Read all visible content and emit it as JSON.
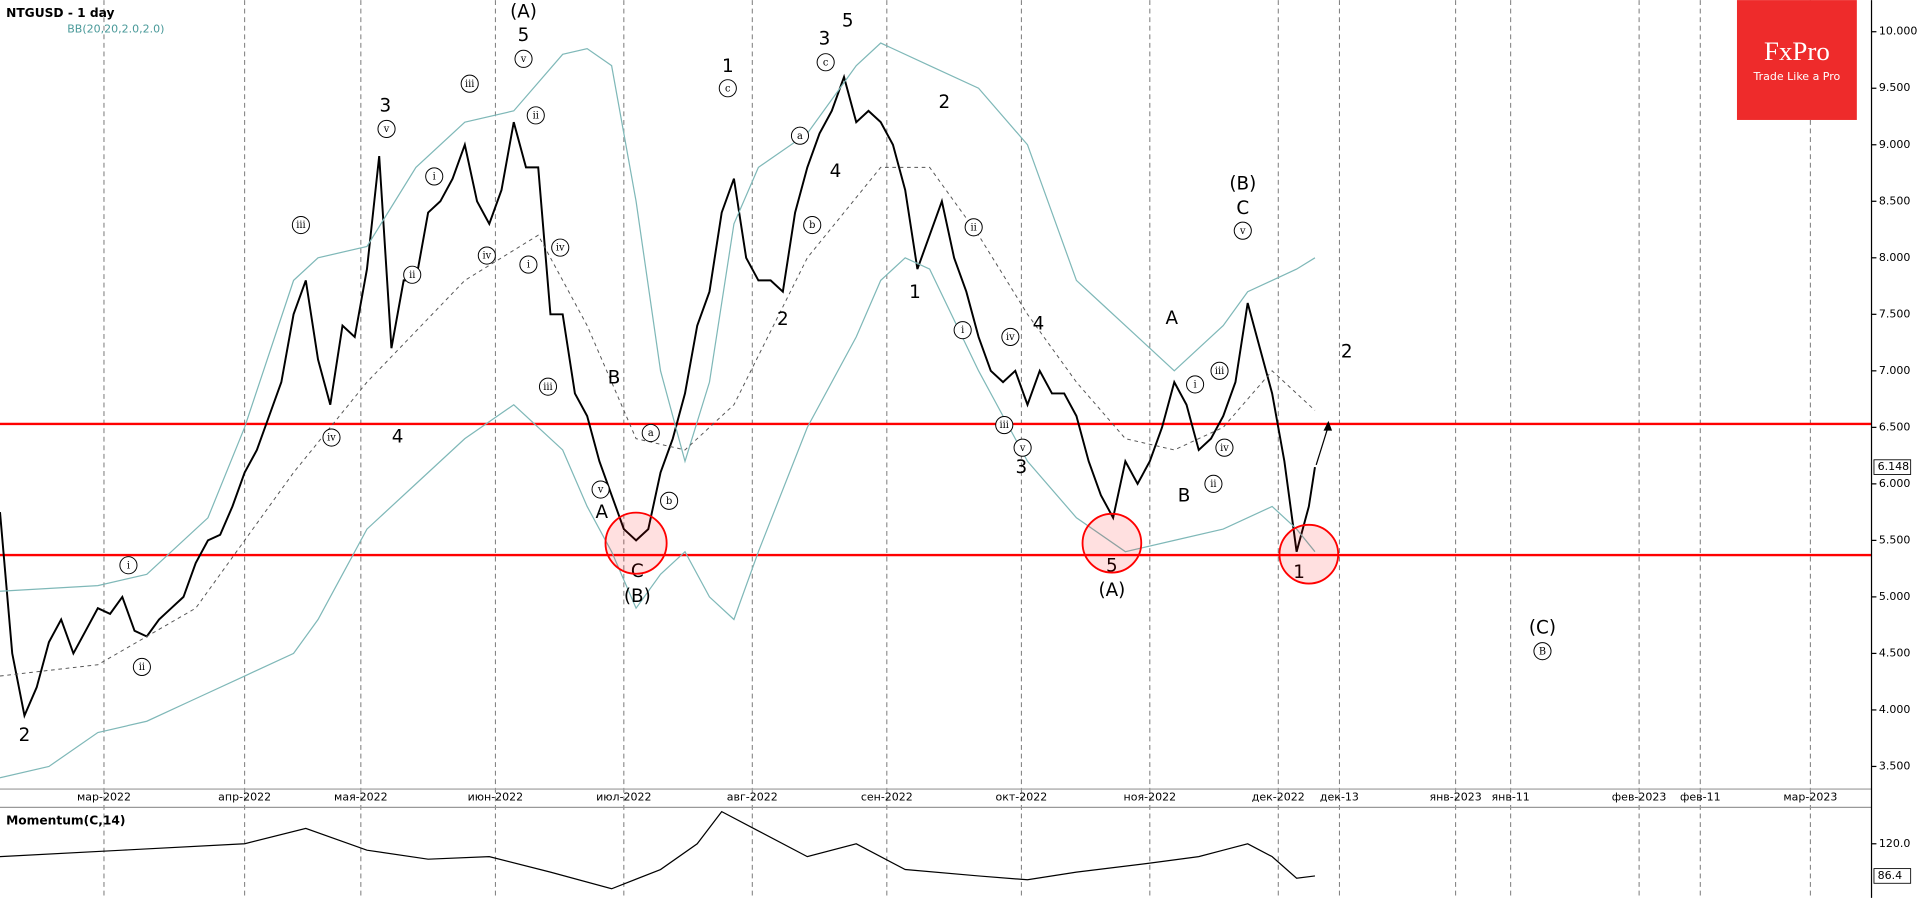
{
  "logo": {
    "brand": "FxPro",
    "tagline": "Trade Like a Pro"
  },
  "chart_data": [
    {
      "type": "line",
      "title": "NTGUSD - 1 day",
      "subtitle": "BB(20,20,2.0,2.0)",
      "xlim": [
        0,
        306
      ],
      "ylim": [
        3.3,
        10.28
      ],
      "xticks": [
        {
          "value": 17,
          "label": "мар-2022"
        },
        {
          "value": 40,
          "label": "апр-2022"
        },
        {
          "value": 59,
          "label": "мая-2022"
        },
        {
          "value": 81,
          "label": "июн-2022"
        },
        {
          "value": 102,
          "label": "июл-2022"
        },
        {
          "value": 123,
          "label": "авг-2022"
        },
        {
          "value": 145,
          "label": "сен-2022"
        },
        {
          "value": 167,
          "label": "окт-2022"
        },
        {
          "value": 188,
          "label": "ноя-2022"
        },
        {
          "value": 209,
          "label": "дек-2022"
        },
        {
          "value": 219,
          "label": "дек-13"
        },
        {
          "value": 238,
          "label": "янв-2023"
        },
        {
          "value": 247,
          "label": "янв-11"
        },
        {
          "value": 268,
          "label": "фев-2023"
        },
        {
          "value": 278,
          "label": "фев-11"
        },
        {
          "value": 296,
          "label": "мар-2023"
        }
      ],
      "yticks": [
        {
          "value": 3.5,
          "label": "3.500"
        },
        {
          "value": 4,
          "label": "4.000"
        },
        {
          "value": 4.5,
          "label": "4.500"
        },
        {
          "value": 5,
          "label": "5.000"
        },
        {
          "value": 5.5,
          "label": "5.500"
        },
        {
          "value": 6,
          "label": "6.000"
        },
        {
          "value": 6.5,
          "label": "6.500"
        },
        {
          "value": 7,
          "label": "7.000"
        },
        {
          "value": 7.5,
          "label": "7.500"
        },
        {
          "value": 8,
          "label": "8.000"
        },
        {
          "value": 8.5,
          "label": "8.500"
        },
        {
          "value": 9,
          "label": "9.000"
        },
        {
          "value": 9.5,
          "label": "9.500"
        },
        {
          "value": 10,
          "label": "10.000"
        }
      ],
      "levels": [
        6.53,
        5.37
      ],
      "level_color": "#ff0000",
      "series": [
        {
          "color": "#000000",
          "width": 1.6,
          "dashed": false,
          "last_tag": true,
          "x": [
            0,
            2,
            4,
            6,
            8,
            10,
            12,
            14,
            16,
            18,
            20,
            22,
            24,
            26,
            28,
            30,
            32,
            34,
            36,
            38,
            40,
            42,
            44,
            46,
            48,
            50,
            52,
            54,
            56,
            58,
            60,
            62,
            64,
            66,
            68,
            70,
            72,
            74,
            76,
            78,
            80,
            82,
            84,
            86,
            88,
            90,
            92,
            94,
            96,
            98,
            100,
            102,
            104,
            106,
            108,
            110,
            112,
            114,
            116,
            118,
            120,
            122,
            124,
            126,
            128,
            130,
            132,
            134,
            136,
            138,
            140,
            142,
            144,
            146,
            148,
            150,
            152,
            154,
            156,
            158,
            160,
            162,
            164,
            166,
            168,
            170,
            172,
            174,
            176,
            178,
            180,
            182,
            184,
            186,
            188,
            190,
            192,
            194,
            196,
            198,
            200,
            202,
            204,
            206,
            208,
            210,
            211,
            212,
            213,
            214,
            215
          ],
          "values": [
            5.75,
            4.5,
            3.95,
            4.2,
            4.6,
            4.8,
            4.5,
            4.7,
            4.9,
            4.85,
            5.0,
            4.7,
            4.65,
            4.8,
            4.9,
            5.0,
            5.3,
            5.5,
            5.55,
            5.8,
            6.1,
            6.3,
            6.6,
            6.9,
            7.5,
            7.8,
            7.1,
            6.7,
            7.4,
            7.3,
            7.9,
            8.9,
            7.2,
            7.8,
            7.8,
            8.4,
            8.5,
            8.7,
            9.0,
            8.5,
            8.3,
            8.6,
            9.2,
            8.8,
            8.8,
            7.5,
            7.5,
            6.8,
            6.6,
            6.2,
            5.9,
            5.6,
            5.5,
            5.6,
            6.1,
            6.4,
            6.8,
            7.4,
            7.7,
            8.4,
            8.7,
            8.0,
            7.8,
            7.8,
            7.7,
            8.4,
            8.8,
            9.1,
            9.3,
            9.6,
            9.2,
            9.3,
            9.2,
            9.0,
            8.6,
            7.9,
            8.2,
            8.5,
            8.0,
            7.7,
            7.3,
            7.0,
            6.9,
            7.0,
            6.7,
            7.0,
            6.8,
            6.8,
            6.6,
            6.2,
            5.9,
            5.7,
            6.2,
            6.0,
            6.2,
            6.5,
            6.9,
            6.7,
            6.3,
            6.4,
            6.6,
            6.9,
            7.6,
            7.2,
            6.8,
            6.2,
            5.8,
            5.4,
            5.6,
            5.8,
            6.148
          ]
        },
        {
          "color": "#7fb8b8",
          "width": 1,
          "dashed": false,
          "x": [
            0,
            16,
            24,
            34,
            40,
            48,
            52,
            60,
            68,
            76,
            84,
            92,
            96,
            100,
            104,
            108,
            112,
            116,
            120,
            124,
            132,
            140,
            144,
            152,
            160,
            168,
            172,
            176,
            180,
            188,
            192,
            196,
            200,
            204,
            208,
            212,
            215
          ],
          "values": [
            5.05,
            5.1,
            5.2,
            5.7,
            6.5,
            7.8,
            8.0,
            8.1,
            8.8,
            9.2,
            9.3,
            9.8,
            9.85,
            9.7,
            8.5,
            7.0,
            6.2,
            6.9,
            8.3,
            8.8,
            9.1,
            9.7,
            9.9,
            9.7,
            9.5,
            9.0,
            8.4,
            7.8,
            7.6,
            7.2,
            7.0,
            7.2,
            7.4,
            7.7,
            7.8,
            7.9,
            8.0
          ]
        },
        {
          "color": "#555555",
          "width": 0.8,
          "dashed": true,
          "x": [
            0,
            16,
            32,
            48,
            60,
            76,
            88,
            96,
            104,
            112,
            120,
            132,
            144,
            152,
            160,
            168,
            176,
            184,
            192,
            200,
            208,
            212,
            215
          ],
          "values": [
            4.3,
            4.4,
            4.9,
            6.1,
            6.9,
            7.8,
            8.2,
            7.4,
            6.4,
            6.3,
            6.7,
            8.0,
            8.8,
            8.8,
            8.2,
            7.5,
            6.9,
            6.4,
            6.3,
            6.5,
            7.0,
            6.8,
            6.65
          ]
        },
        {
          "color": "#7fb8b8",
          "width": 1,
          "dashed": false,
          "x": [
            0,
            8,
            16,
            24,
            32,
            40,
            48,
            52,
            56,
            60,
            68,
            76,
            84,
            92,
            96,
            100,
            104,
            108,
            112,
            116,
            120,
            124,
            132,
            140,
            144,
            148,
            152,
            160,
            168,
            176,
            184,
            192,
            200,
            208,
            212,
            215
          ],
          "values": [
            3.4,
            3.5,
            3.8,
            3.9,
            4.1,
            4.3,
            4.5,
            4.8,
            5.2,
            5.6,
            6.0,
            6.4,
            6.7,
            6.3,
            5.8,
            5.4,
            4.9,
            5.2,
            5.4,
            5.0,
            4.8,
            5.4,
            6.5,
            7.3,
            7.8,
            8.0,
            7.9,
            7.0,
            6.2,
            5.7,
            5.4,
            5.5,
            5.6,
            5.8,
            5.6,
            5.4
          ]
        }
      ],
      "annotations": [
        {
          "text": "2",
          "x": 4,
          "y": 3.77
        },
        {
          "text": "3",
          "x": 63,
          "y": 9.34
        },
        {
          "text": "4",
          "x": 65,
          "y": 6.41
        },
        {
          "text": "(A)",
          "x": 85.6,
          "y": 10.17
        },
        {
          "text": "5",
          "x": 85.6,
          "y": 9.96
        },
        {
          "text": "A",
          "x": 98.4,
          "y": 5.74
        },
        {
          "text": "B",
          "x": 100.4,
          "y": 6.93
        },
        {
          "text": "C",
          "x": 104.2,
          "y": 5.22
        },
        {
          "text": "(B)",
          "x": 104.2,
          "y": 5.0
        },
        {
          "text": "1",
          "x": 119,
          "y": 9.69
        },
        {
          "text": "2",
          "x": 128,
          "y": 7.45
        },
        {
          "text": "3",
          "x": 134.8,
          "y": 9.93
        },
        {
          "text": "4",
          "x": 136.6,
          "y": 8.76
        },
        {
          "text": "5",
          "x": 138.6,
          "y": 10.09
        },
        {
          "text": "2",
          "x": 154.4,
          "y": 9.37
        },
        {
          "text": "1",
          "x": 149.6,
          "y": 7.69
        },
        {
          "text": "3",
          "x": 167,
          "y": 6.14
        },
        {
          "text": "4",
          "x": 169.8,
          "y": 7.41
        },
        {
          "text": "5",
          "x": 181.8,
          "y": 5.27
        },
        {
          "text": "(A)",
          "x": 181.8,
          "y": 5.05
        },
        {
          "text": "A",
          "x": 191.6,
          "y": 7.46
        },
        {
          "text": "B",
          "x": 193.6,
          "y": 5.89
        },
        {
          "text": "(B)",
          "x": 203.2,
          "y": 8.65
        },
        {
          "text": "C",
          "x": 203.2,
          "y": 8.43
        },
        {
          "text": "1",
          "x": 212.4,
          "y": 5.21
        },
        {
          "text": "2",
          "x": 220.2,
          "y": 7.16
        },
        {
          "text": "(C)",
          "x": 252.2,
          "y": 4.72
        },
        {
          "text": "i",
          "x": 21,
          "y": 5.28,
          "circled": true
        },
        {
          "text": "ii",
          "x": 23.2,
          "y": 4.38,
          "circled": true
        },
        {
          "text": "iii",
          "x": 49.2,
          "y": 8.29,
          "circled": true
        },
        {
          "text": "iv",
          "x": 54.2,
          "y": 6.41,
          "circled": true
        },
        {
          "text": "v",
          "x": 63.2,
          "y": 9.14,
          "circled": true
        },
        {
          "text": "i",
          "x": 71,
          "y": 8.72,
          "circled": true
        },
        {
          "text": "ii",
          "x": 67.4,
          "y": 7.85,
          "circled": true
        },
        {
          "text": "iii",
          "x": 76.8,
          "y": 9.54,
          "circled": true
        },
        {
          "text": "iv",
          "x": 79.6,
          "y": 8.02,
          "circled": true
        },
        {
          "text": "v",
          "x": 85.6,
          "y": 9.76,
          "circled": true
        },
        {
          "text": "ii",
          "x": 87.6,
          "y": 9.26,
          "circled": true
        },
        {
          "text": "i",
          "x": 86.4,
          "y": 7.94,
          "circled": true
        },
        {
          "text": "iii",
          "x": 89.6,
          "y": 6.86,
          "circled": true
        },
        {
          "text": "iv",
          "x": 91.6,
          "y": 8.09,
          "circled": true
        },
        {
          "text": "v",
          "x": 98.2,
          "y": 5.95,
          "circled": true
        },
        {
          "text": "a",
          "x": 106.4,
          "y": 6.45,
          "circled": true
        },
        {
          "text": "b",
          "x": 109.4,
          "y": 5.85,
          "circled": true
        },
        {
          "text": "c",
          "x": 119,
          "y": 9.5,
          "circled": true
        },
        {
          "text": "a",
          "x": 130.8,
          "y": 9.08,
          "circled": true
        },
        {
          "text": "b",
          "x": 132.8,
          "y": 8.29,
          "circled": true
        },
        {
          "text": "c",
          "x": 135,
          "y": 9.73,
          "circled": true
        },
        {
          "text": "ii",
          "x": 159.2,
          "y": 8.27,
          "circled": true
        },
        {
          "text": "i",
          "x": 157.4,
          "y": 7.36,
          "circled": true
        },
        {
          "text": "iv",
          "x": 165.2,
          "y": 7.3,
          "circled": true
        },
        {
          "text": "iii",
          "x": 164.2,
          "y": 6.52,
          "circled": true
        },
        {
          "text": "v",
          "x": 167.2,
          "y": 6.32,
          "circled": true
        },
        {
          "text": "v",
          "x": 203.2,
          "y": 8.24,
          "circled": true
        },
        {
          "text": "i",
          "x": 195.4,
          "y": 6.88,
          "circled": true
        },
        {
          "text": "iii",
          "x": 199.4,
          "y": 7.0,
          "circled": true
        },
        {
          "text": "iv",
          "x": 200.2,
          "y": 6.32,
          "circled": true
        },
        {
          "text": "ii",
          "x": 198.4,
          "y": 6.0,
          "circled": true
        },
        {
          "text": "B",
          "x": 252.2,
          "y": 4.52,
          "circled": true
        }
      ]
    },
    {
      "type": "line",
      "title": "Momentum(C,14)",
      "xlim": [
        0,
        306
      ],
      "ylim": [
        66,
        158
      ],
      "yticks": [
        {
          "value": 120,
          "label": "120.0"
        }
      ],
      "series": [
        {
          "color": "#000000",
          "width": 1,
          "dashed": false,
          "last_tag": true,
          "x": [
            0,
            20,
            40,
            50,
            60,
            70,
            80,
            90,
            100,
            108,
            114,
            118,
            124,
            132,
            140,
            148,
            160,
            168,
            176,
            188,
            196,
            200,
            204,
            208,
            212,
            215
          ],
          "values": [
            106.6,
            113.3,
            120,
            136.1,
            113.3,
            103.9,
            106.6,
            90.4,
            73,
            93.1,
            120,
            153.6,
            133.4,
            106.6,
            120,
            93.1,
            86.4,
            82.4,
            90.4,
            99.8,
            106.6,
            113.3,
            120,
            106.6,
            84.0,
            86.4
          ]
        }
      ]
    }
  ]
}
